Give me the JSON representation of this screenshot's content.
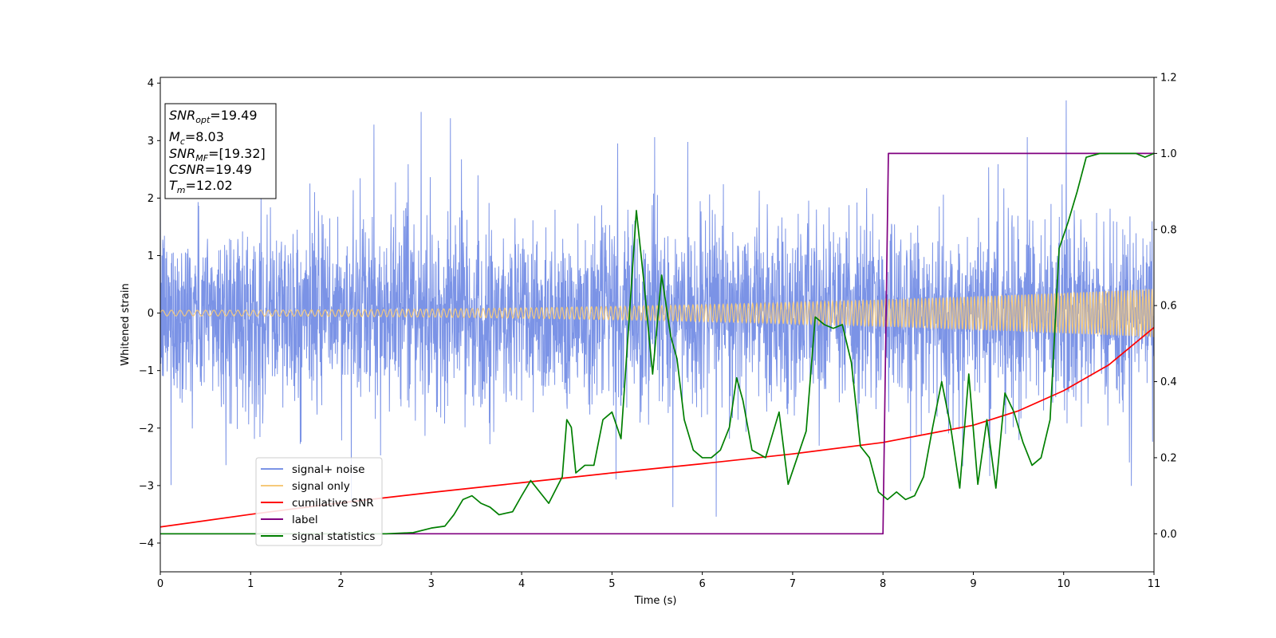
{
  "chart_data": {
    "type": "line",
    "xlabel": "Time (s)",
    "ylabel": "Whitened strain",
    "xlim": [
      0,
      11
    ],
    "ylim": [
      -4.5,
      4.1
    ],
    "y2lim": [
      -0.1,
      1.2
    ],
    "xticks": [
      "0",
      "1",
      "2",
      "3",
      "4",
      "5",
      "6",
      "7",
      "8",
      "9",
      "10",
      "11"
    ],
    "yticks": [
      "4",
      "3",
      "2",
      "1",
      "0",
      "−1",
      "−2",
      "−3",
      "−4"
    ],
    "y2ticks": [
      "1.2",
      "1.0",
      "0.8",
      "0.6",
      "0.4",
      "0.2",
      "0.0"
    ],
    "grid": false,
    "legend_position": "lower-left",
    "annotation": {
      "lines": [
        {
          "base": "SNR",
          "sub": "opt",
          "value": "=19.49"
        },
        {
          "base": "M",
          "sub": "c",
          "value": "=8.03"
        },
        {
          "base": "SNR",
          "sub": "MF",
          "value": "=[19.32]"
        },
        {
          "base": "CSNR",
          "sub": "",
          "value": "=19.49"
        },
        {
          "base": "T",
          "sub": "m",
          "value": "=12.02"
        }
      ]
    },
    "series": [
      {
        "name": "signal+ noise",
        "color": "#7b93e6",
        "axis": "left",
        "kind": "noise",
        "envelope": {
          "typical_amplitude": 1.7,
          "max_amplitude": 3.7,
          "min_amplitude": -4.15
        }
      },
      {
        "name": "signal only",
        "color": "#f6c97a",
        "axis": "left",
        "kind": "chirp",
        "amplitude_start": 0.05,
        "amplitude_end": 0.42
      },
      {
        "name": "cumilative SNR",
        "color": "#ff0000",
        "axis": "left",
        "x": [
          0,
          1,
          2,
          3,
          4,
          5,
          6,
          7,
          8,
          8.5,
          9,
          9.5,
          10,
          10.5,
          11
        ],
        "y": [
          -3.72,
          -3.5,
          -3.3,
          -3.12,
          -2.95,
          -2.78,
          -2.62,
          -2.45,
          -2.25,
          -2.1,
          -1.95,
          -1.7,
          -1.35,
          -0.9,
          -0.25
        ]
      },
      {
        "name": "label",
        "color": "#800080",
        "axis": "right",
        "x": [
          0,
          8.0,
          8.06,
          11
        ],
        "y": [
          0.0,
          0.0,
          1.0,
          1.0
        ]
      },
      {
        "name": "signal statistics",
        "color": "#007f00",
        "axis": "right",
        "x": [
          0,
          2.0,
          2.5,
          2.8,
          3.0,
          3.15,
          3.25,
          3.35,
          3.45,
          3.55,
          3.65,
          3.75,
          3.9,
          4.0,
          4.1,
          4.2,
          4.3,
          4.45,
          4.5,
          4.55,
          4.6,
          4.7,
          4.8,
          4.9,
          5.0,
          5.1,
          5.2,
          5.27,
          5.35,
          5.45,
          5.55,
          5.65,
          5.72,
          5.8,
          5.9,
          6.0,
          6.1,
          6.2,
          6.3,
          6.38,
          6.45,
          6.55,
          6.7,
          6.85,
          6.95,
          7.05,
          7.15,
          7.25,
          7.35,
          7.45,
          7.55,
          7.65,
          7.75,
          7.85,
          7.95,
          8.05,
          8.15,
          8.25,
          8.35,
          8.45,
          8.55,
          8.65,
          8.75,
          8.85,
          8.95,
          9.05,
          9.15,
          9.25,
          9.35,
          9.45,
          9.55,
          9.65,
          9.75,
          9.85,
          9.95,
          10.05,
          10.15,
          10.25,
          10.4,
          10.6,
          10.8,
          10.9,
          11.0
        ],
        "y": [
          0.0,
          0.0,
          0.0,
          0.003,
          0.015,
          0.02,
          0.05,
          0.09,
          0.1,
          0.08,
          0.07,
          0.05,
          0.058,
          0.1,
          0.14,
          0.11,
          0.08,
          0.15,
          0.3,
          0.28,
          0.16,
          0.18,
          0.18,
          0.3,
          0.32,
          0.25,
          0.6,
          0.85,
          0.67,
          0.42,
          0.68,
          0.52,
          0.46,
          0.3,
          0.22,
          0.2,
          0.2,
          0.22,
          0.28,
          0.41,
          0.35,
          0.22,
          0.2,
          0.32,
          0.13,
          0.2,
          0.27,
          0.57,
          0.55,
          0.54,
          0.55,
          0.45,
          0.23,
          0.2,
          0.11,
          0.09,
          0.11,
          0.09,
          0.1,
          0.15,
          0.28,
          0.4,
          0.28,
          0.12,
          0.42,
          0.13,
          0.3,
          0.12,
          0.37,
          0.32,
          0.24,
          0.18,
          0.2,
          0.3,
          0.75,
          0.82,
          0.9,
          0.99,
          1.0,
          1.0,
          1.0,
          0.99,
          1.0
        ]
      }
    ]
  }
}
